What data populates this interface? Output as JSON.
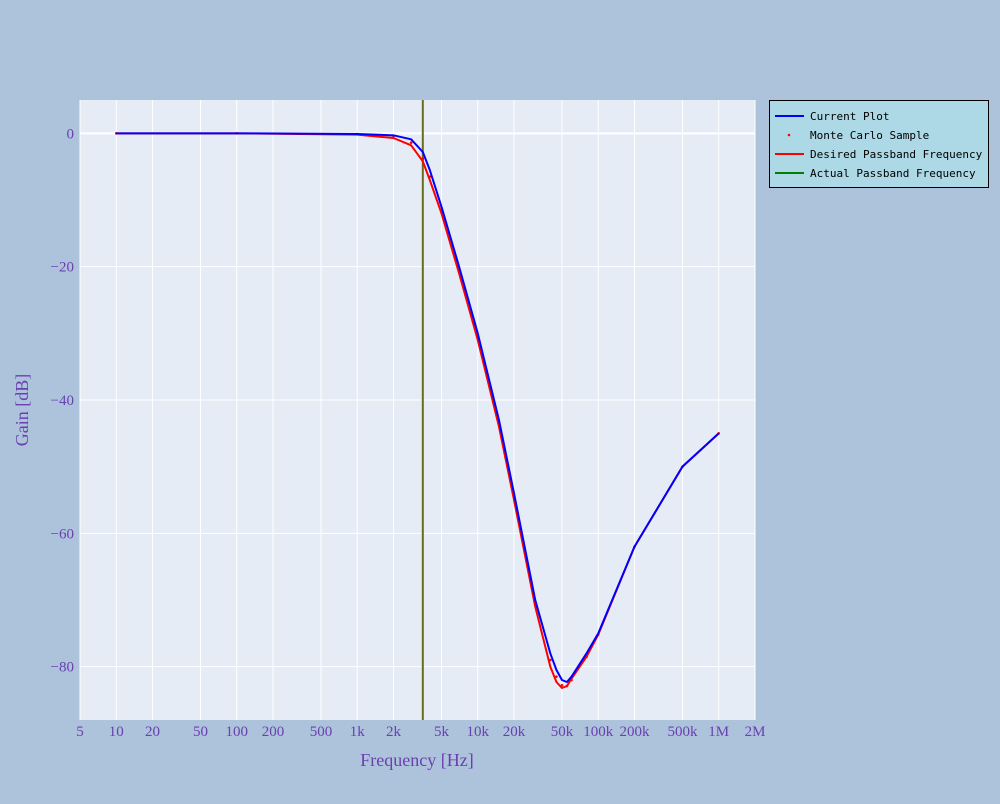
{
  "chart_data": {
    "type": "line",
    "title": "",
    "xlabel": "Frequency [Hz]",
    "ylabel": "Gain [dB]",
    "x_scale": "log",
    "xlim": [
      5,
      2000000
    ],
    "ylim": [
      -88,
      5
    ],
    "grid": true,
    "legend_position": "top-right outside",
    "x_ticks": [
      {
        "v": 5,
        "label": "5"
      },
      {
        "v": 10,
        "label": "10"
      },
      {
        "v": 20,
        "label": "20"
      },
      {
        "v": 50,
        "label": "50"
      },
      {
        "v": 100,
        "label": "100"
      },
      {
        "v": 200,
        "label": "200"
      },
      {
        "v": 500,
        "label": "500"
      },
      {
        "v": 1000,
        "label": "1k"
      },
      {
        "v": 2000,
        "label": "2k"
      },
      {
        "v": 5000,
        "label": "5k"
      },
      {
        "v": 10000,
        "label": "10k"
      },
      {
        "v": 20000,
        "label": "20k"
      },
      {
        "v": 50000,
        "label": "50k"
      },
      {
        "v": 100000,
        "label": "100k"
      },
      {
        "v": 200000,
        "label": "200k"
      },
      {
        "v": 500000,
        "label": "500k"
      },
      {
        "v": 1000000,
        "label": "1M"
      },
      {
        "v": 2000000,
        "label": "2M"
      }
    ],
    "y_ticks": [
      {
        "v": 0,
        "label": "0"
      },
      {
        "v": -20,
        "label": "−20"
      },
      {
        "v": -40,
        "label": "−40"
      },
      {
        "v": -60,
        "label": "−60"
      },
      {
        "v": -80,
        "label": "−80"
      }
    ],
    "series": [
      {
        "name": "Current Plot",
        "color": "#0000ff",
        "style": "line",
        "x": [
          10,
          100,
          1000,
          2000,
          2800,
          3500,
          4000,
          5000,
          7000,
          10000,
          15000,
          20000,
          30000,
          40000,
          45000,
          50000,
          55000,
          60000,
          80000,
          100000,
          200000,
          500000,
          1000000
        ],
        "y": [
          0,
          0,
          -0.1,
          -0.3,
          -0.9,
          -2.8,
          -5.5,
          -11,
          -20,
          -30,
          -43,
          -54,
          -70,
          -78,
          -80.5,
          -82,
          -82.3,
          -81.5,
          -78,
          -75,
          -62,
          -50,
          -45
        ]
      },
      {
        "name": "Monte Carlo Sample",
        "color": "#ff0000",
        "style": "markers",
        "x": [
          10,
          100,
          1000,
          2000,
          2800,
          3500,
          4000,
          5000,
          7000,
          10000,
          15000,
          20000,
          30000,
          40000,
          45000,
          50000,
          55000,
          60000,
          80000,
          100000,
          200000,
          500000,
          1000000
        ],
        "y": [
          0,
          0,
          -0.1,
          -0.4,
          -1.4,
          -3.8,
          -6.5,
          -11.5,
          -20.5,
          -30.5,
          -43.5,
          -54.5,
          -70.5,
          -79,
          -81.5,
          -82.8,
          -82.9,
          -82,
          -78.5,
          -75.2,
          -62,
          -50,
          -45
        ]
      },
      {
        "name": "Desired Passband Frequency",
        "color": "#ff0000",
        "style": "line",
        "x": [
          10,
          100,
          1000,
          2000,
          2800,
          3500,
          4000,
          5000,
          7000,
          10000,
          15000,
          20000,
          30000,
          40000,
          45000,
          50000,
          55000,
          60000,
          80000,
          100000,
          200000,
          500000,
          1000000
        ],
        "y": [
          0,
          0,
          -0.2,
          -0.7,
          -1.8,
          -4.2,
          -7,
          -12,
          -21,
          -31,
          -44,
          -55,
          -71,
          -80,
          -82.3,
          -83.2,
          -82.9,
          -81.8,
          -78.5,
          -75.2,
          -62,
          -50,
          -45
        ]
      },
      {
        "name": "Actual Passband Frequency",
        "color": "#008000",
        "style": "line",
        "x": [],
        "y": []
      }
    ],
    "vertical_lines": [
      {
        "x": 3500,
        "color": "#6b6b1e"
      }
    ]
  }
}
